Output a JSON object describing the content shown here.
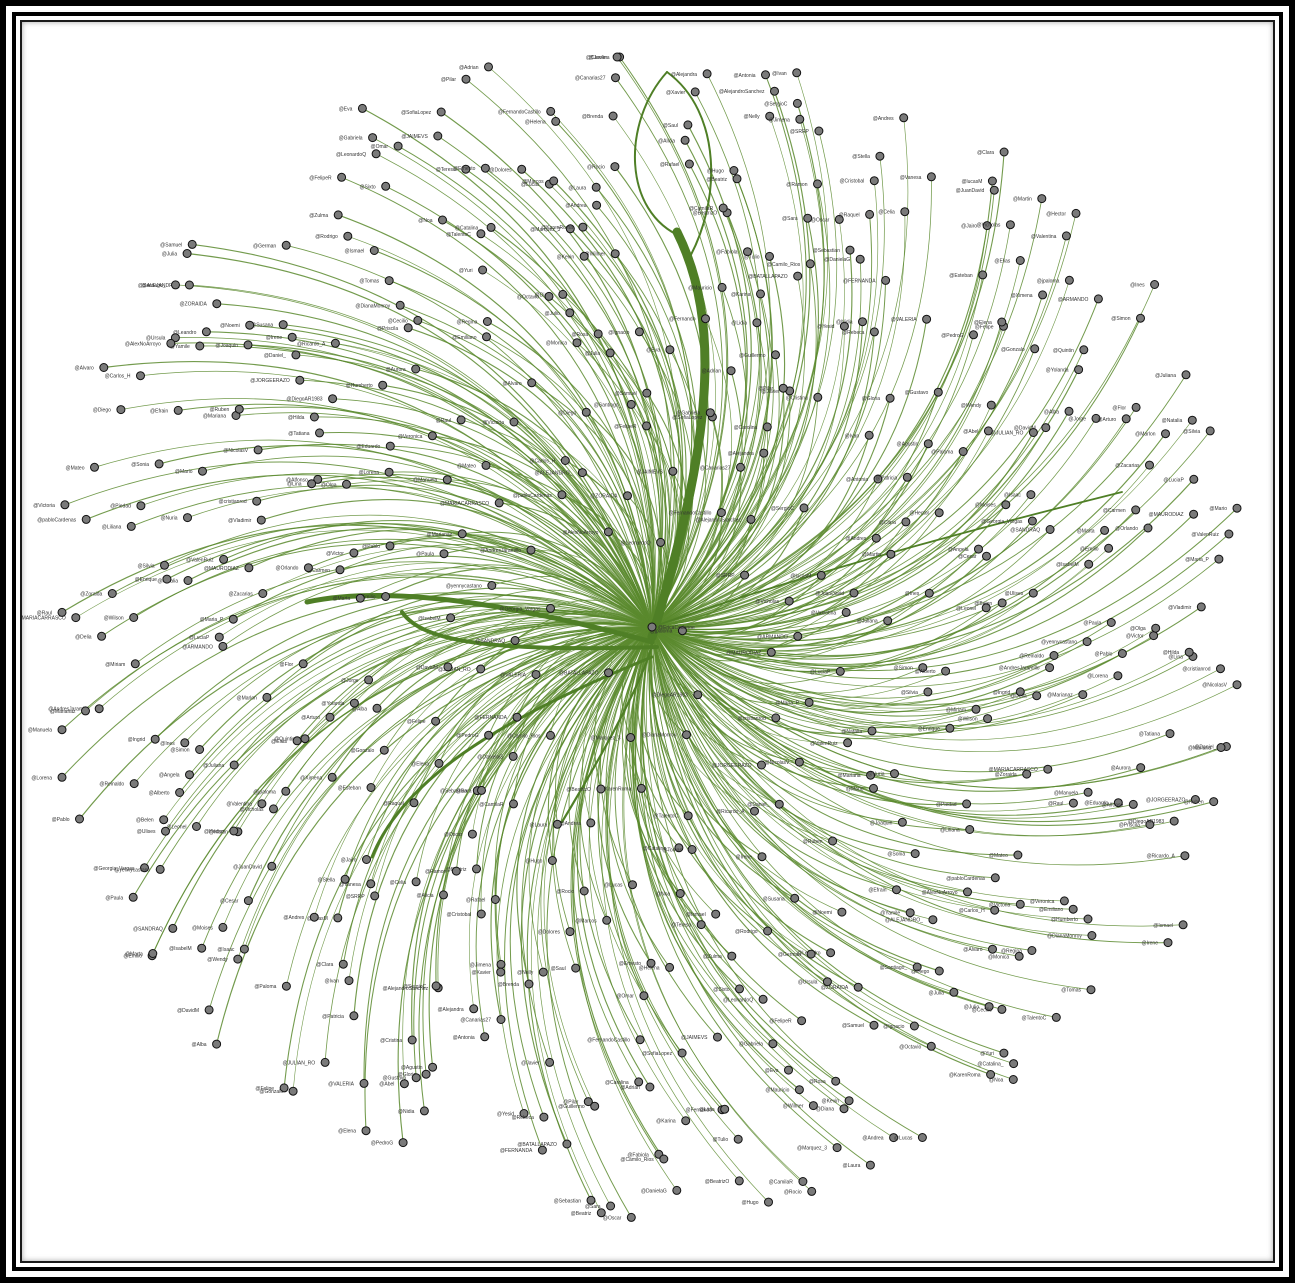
{
  "colors": {
    "edge": "#5a8a2e",
    "edge_heavy": "#4f7f26",
    "node_fill": "#7a7a7a",
    "node_stroke": "#111111",
    "frame": "#000000",
    "background": "#ffffff"
  },
  "graph": {
    "hub": {
      "label": "@EricaCedenoe",
      "visible_hub_label": "@EricaCedenoe"
    },
    "nodes": [
      "@jpaloma",
      "@BATALLAPAZO",
      "@LeonardoQ",
      "@DiegoAR1983",
      "@Georgia_Vargas",
      "@SRRP",
      "@Marquez_3",
      "@AlexNoArroyo",
      "@MAURODIAZ",
      "@VALERIA",
      "@FernandoCastillo",
      "@DianaMonroy",
      "@AndresJaramillo",
      "@Vicholas",
      "@Camilo_Rios",
      "@ZORAIDA",
      "@cristianrod",
      "@SANDRAQ",
      "@AlejandroSanchez",
      "@KarenRoma",
      "@pabloCardenas",
      "@ARMANDO",
      "@FERNANDA",
      "@JAIMEVS",
      "@JORGEERAZO",
      "@yennycastano",
      "@lucasM",
      "@BeatrizO",
      "@ALEJANDRO_",
      "@Maria_P",
      "@JULIAN_RO",
      "@Canarias27",
      "@TalentoC",
      "@MARIACARRASCO",
      "@Valentina",
      "@DanielaG",
      "@FelipeR",
      "@NicolasV",
      "@IsabelM",
      "@SergioC",
      "@Andrea",
      "@Carlos_H",
      "@LuciaP",
      "@PedroG",
      "@SofiaLopez",
      "@Ricardo_A",
      "@Marianaz",
      "@JuanDavid",
      "@CamilaR",
      "@Santiago_",
      "@ValenRuiz",
      "@DavidM",
      "@Alejandra",
      "@Catalina_",
      "@Mateo",
      "@Juliana",
      "@Sebastian",
      "@Gabriela",
      "@Daniel_",
      "@Paula",
      "@Andres",
      "@Laura",
      "@Diego",
      "@Natalia",
      "@Felipe",
      "@Carolina",
      "@Tomas",
      "@Manuela",
      "@Martin",
      "@Sara",
      "@Samuel",
      "@Mariana",
      "@Emilio",
      "@Antonia",
      "@Lucas",
      "@Victoria",
      "@Simon",
      "@Elena",
      "@Adrian",
      "@Irene",
      "@Pablo",
      "@Clara",
      "@Hugo",
      "@Julia",
      "@Mario",
      "@Alba",
      "@Javier",
      "@Noa",
      "@Raul",
      "@Ines",
      "@Oscar",
      "@Eva",
      "@Ruben",
      "@Marta",
      "@Ivan",
      "@Rocio",
      "@Alvaro",
      "@Silvia",
      "@Gonzalo",
      "@Pilar",
      "@Ismael",
      "@Lorena",
      "@Hector",
      "@Beatriz",
      "@Ignacio",
      "@Nuria",
      "@Jorge",
      "@Cristina",
      "@Marcos",
      "@Veronica",
      "@Alberto",
      "@Raquel",
      "@Fernando",
      "@Susana",
      "@Victor",
      "@Patricia",
      "@Rafael",
      "@Monica",
      "@Enrique",
      "@Yolanda",
      "@Guillermo",
      "@Teresa",
      "@Eduardo",
      "@Angela",
      "@Ramon",
      "@Rosa",
      "@Joaquin",
      "@Carmen",
      "@Agustin",
      "@Dolores",
      "@Emiliano",
      "@Miriam",
      "@Esteban",
      "@Lidia",
      "@Rodrigo",
      "@Olga",
      "@Cesar",
      "@Alicia",
      "@Julio",
      "@Sonia",
      "@Arturo",
      "@Gloria",
      "@Ernesto",
      "@Aurora",
      "@Leonel",
      "@Celia",
      "@Mauricio",
      "@Noemi",
      "@Orlando",
      "@Paloma",
      "@Saul",
      "@Regina",
      "@Wilson",
      "@Ximena",
      "@Yesid",
      "@Zulma",
      "@Alfonso",
      "@Belen",
      "@Cristobal",
      "@Diana",
      "@Efrain",
      "@Flor",
      "@Gustavo",
      "@Helena",
      "@Humberto",
      "@Ingrid",
      "@Jairo",
      "@Karina",
      "@Leandro",
      "@Lina",
      "@Moises",
      "@Nelly",
      "@Octavio",
      "@Piedad",
      "@Quintin",
      "@Rebeca",
      "@Sixto",
      "@Tatiana",
      "@Ulises",
      "@Vanesa",
      "@Wilmer",
      "@Yamile",
      "@Zacarias",
      "@Abel",
      "@Brenda",
      "@Cecilio",
      "@Delia",
      "@Elias",
      "@Fabiola",
      "@German",
      "@Hilda",
      "@Isaac",
      "@Jimena",
      "@Kevin",
      "@Liliana",
      "@Marlon",
      "@Nidia",
      "@Omar",
      "@Priscila",
      "@Reinaldo",
      "@Stella",
      "@Tulio",
      "@Ursula",
      "@Vladimir",
      "@Wendy",
      "@Xavier",
      "@Yuri",
      "@Zoraida"
    ]
  }
}
